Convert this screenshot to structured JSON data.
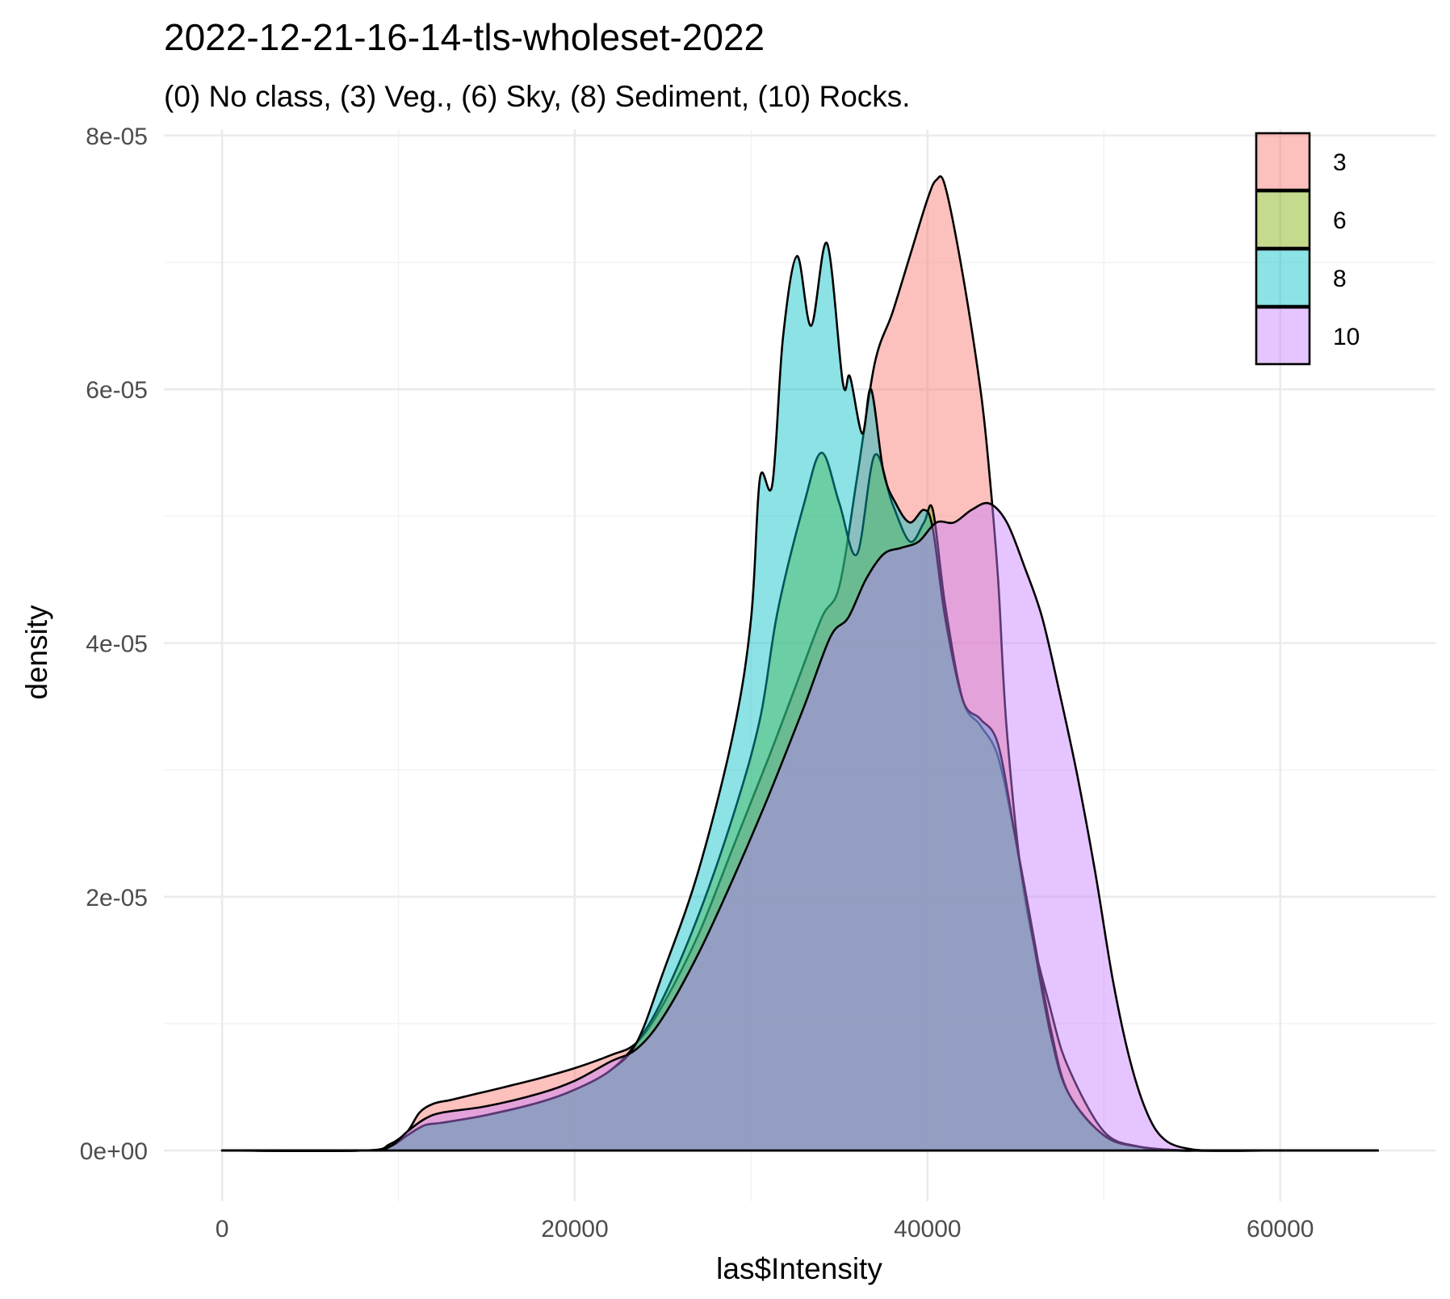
{
  "chart_data": {
    "type": "area",
    "title": "2022-12-21-16-14-tls-wholeset-2022",
    "subtitle": "(0) No class, (3) Veg., (6) Sky, (8) Sediment, (10) Rocks.",
    "xlabel": "las$Intensity",
    "ylabel": "density",
    "xlim": [
      -3300,
      68800
    ],
    "ylim": [
      -4e-06,
      8.05e-05
    ],
    "x_ticks": [
      0,
      20000,
      40000,
      60000
    ],
    "x_tick_labels": [
      "0",
      "20000",
      "40000",
      "60000"
    ],
    "y_ticks": [
      0,
      2e-05,
      4e-05,
      6e-05,
      8e-05
    ],
    "y_tick_labels": [
      "0e+00",
      "2e-05",
      "4e-05",
      "6e-05",
      "8e-05"
    ],
    "grid": true,
    "legend_position": "top-right",
    "series": [
      {
        "name": "3",
        "color": "#F8766D",
        "x": [
          0,
          8000,
          9500,
          10500,
          11200,
          12000,
          13000,
          14500,
          16000,
          18000,
          20000,
          22000,
          23500,
          25000,
          27000,
          29000,
          31000,
          32500,
          34000,
          35000,
          36000,
          37000,
          38000,
          39000,
          40000,
          40500,
          41000,
          42000,
          43000,
          43500,
          44000,
          44500,
          45500,
          47000,
          48000,
          50000,
          52000,
          54000,
          56000,
          60000,
          65535
        ],
        "y": [
          0,
          0,
          5e-07,
          1.5e-06,
          3e-06,
          3.7e-06,
          4e-06,
          4.5e-06,
          5e-06,
          5.7e-06,
          6.5e-06,
          7.5e-06,
          8.5e-06,
          1.15e-05,
          1.7e-05,
          2.4e-05,
          3.1e-05,
          3.65e-05,
          4.2e-05,
          4.45e-05,
          5.3e-05,
          6.2e-05,
          6.6e-05,
          7.05e-05,
          7.5e-05,
          7.65e-05,
          7.6e-05,
          6.9e-05,
          6e-05,
          5.35e-05,
          4.5e-05,
          3.3e-05,
          2e-05,
          1.1e-05,
          6.5e-06,
          1.5e-06,
          3e-07,
          0,
          0,
          0,
          0
        ]
      },
      {
        "name": "6",
        "color": "#7CAE00",
        "x": [
          0,
          8000,
          9500,
          10500,
          11500,
          12500,
          15000,
          18000,
          20000,
          22000,
          23500,
          25000,
          27000,
          29000,
          30500,
          31500,
          33000,
          34000,
          35000,
          36000,
          37000,
          38000,
          39000,
          39800,
          40300,
          41000,
          42000,
          43000,
          44000,
          45000,
          46000,
          47000,
          48000,
          50000,
          52000,
          55000,
          60000,
          65535
        ],
        "y": [
          0,
          0,
          3e-07,
          1.2e-06,
          2e-06,
          2.2e-06,
          2.8e-06,
          3.8e-06,
          4.8e-06,
          6.3e-06,
          8.5e-06,
          1.2e-05,
          1.85e-05,
          2.65e-05,
          3.4e-05,
          4.25e-05,
          5.1e-05,
          5.5e-05,
          5.1e-05,
          4.7e-05,
          5.48e-05,
          5.1e-05,
          4.8e-05,
          4.95e-05,
          5.05e-05,
          4.3e-05,
          3.55e-05,
          3.35e-05,
          3.1e-05,
          2.45e-05,
          1.7e-05,
          9.5e-06,
          4.5e-06,
          1.2e-06,
          3e-07,
          0,
          0,
          0
        ]
      },
      {
        "name": "8",
        "color": "#00BFC4",
        "x": [
          0,
          8000,
          9500,
          10500,
          11500,
          12500,
          15000,
          18000,
          20000,
          22000,
          23500,
          25000,
          27000,
          29000,
          30000,
          30500,
          31200,
          31800,
          32600,
          33400,
          34300,
          35200,
          35600,
          36300,
          36800,
          37500,
          38200,
          39000,
          39800,
          40300,
          41000,
          42000,
          43000,
          44000,
          45000,
          46000,
          47000,
          48000,
          50000,
          52000,
          55000,
          60000,
          65535
        ],
        "y": [
          0,
          0,
          3e-07,
          1.2e-06,
          2e-06,
          2.2e-06,
          2.8e-06,
          3.8e-06,
          4.8e-06,
          6.3e-06,
          8.5e-06,
          1.4e-05,
          2.2e-05,
          3.3e-05,
          4.2e-05,
          5.3e-05,
          5.25e-05,
          6.4e-05,
          7.05e-05,
          6.5e-05,
          7.15e-05,
          6.05e-05,
          6.1e-05,
          5.65e-05,
          6e-05,
          5.35e-05,
          5.1e-05,
          4.95e-05,
          5.05e-05,
          4.9e-05,
          4.2e-05,
          3.55e-05,
          3.4e-05,
          3.2e-05,
          2.45e-05,
          1.65e-05,
          9e-06,
          4.5e-06,
          1.2e-06,
          3e-07,
          0,
          0,
          0
        ]
      },
      {
        "name": "10",
        "color": "#C77CFF",
        "x": [
          0,
          8000,
          9500,
          10500,
          11500,
          12500,
          15000,
          18000,
          20000,
          22000,
          23500,
          25000,
          27000,
          29000,
          31000,
          33000,
          34500,
          35500,
          36500,
          37500,
          38500,
          39500,
          40500,
          41500,
          42500,
          43500,
          44500,
          45500,
          46500,
          47500,
          48500,
          49500,
          50500,
          51500,
          52500,
          53500,
          55000,
          57000,
          60000,
          65535
        ],
        "y": [
          0,
          0,
          3e-07,
          1.5e-06,
          2.5e-06,
          3e-06,
          3.5e-06,
          4.5e-06,
          5.5e-06,
          7e-06,
          8e-06,
          1.05e-05,
          1.55e-05,
          2.15e-05,
          2.8e-05,
          3.5e-05,
          4.05e-05,
          4.2e-05,
          4.5e-05,
          4.7e-05,
          4.75e-05,
          4.8e-05,
          4.95e-05,
          4.95e-05,
          5.05e-05,
          5.1e-05,
          4.95e-05,
          4.6e-05,
          4.2e-05,
          3.6e-05,
          2.95e-05,
          2.2e-05,
          1.35e-05,
          7e-06,
          2.8e-06,
          8e-07,
          1e-07,
          0,
          0,
          0
        ]
      }
    ]
  }
}
